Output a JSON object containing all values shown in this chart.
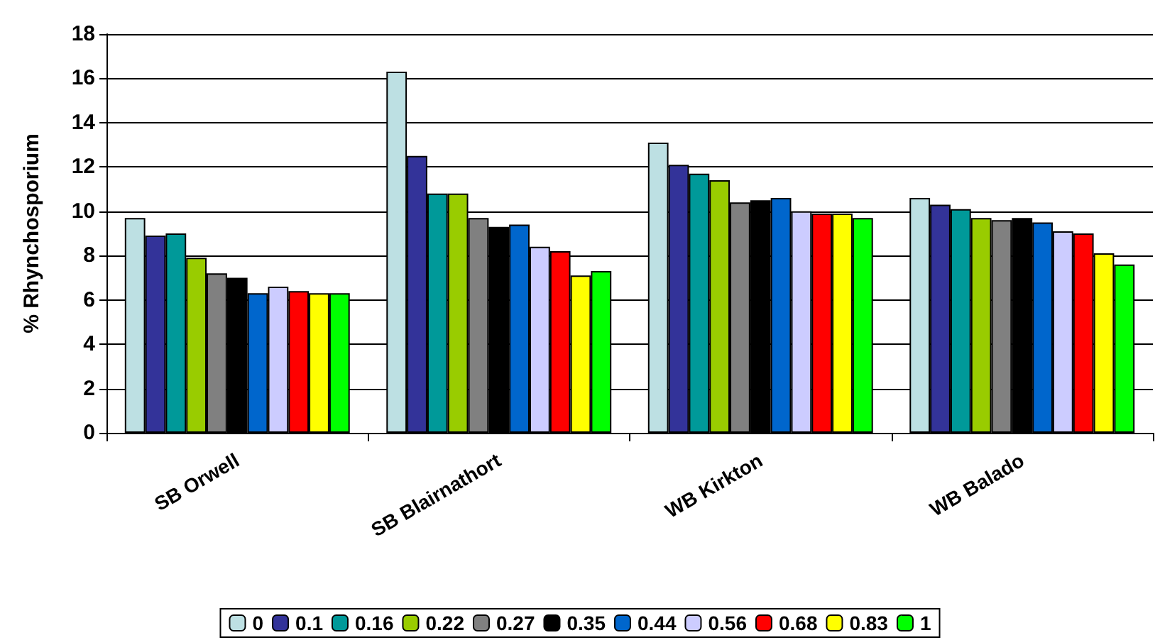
{
  "chart_data": {
    "type": "bar",
    "ylabel": "% Rhynchosporium",
    "categories": [
      "SB Orwell",
      "SB Blairnathort",
      "WB Kirkton",
      "WB Balado"
    ],
    "series": [
      {
        "name": "0",
        "color": "#bde0e3",
        "values": [
          9.7,
          16.3,
          13.1,
          10.6
        ]
      },
      {
        "name": "0.1",
        "color": "#333399",
        "values": [
          8.9,
          12.5,
          12.1,
          10.3
        ]
      },
      {
        "name": "0.16",
        "color": "#009999",
        "values": [
          9.0,
          10.8,
          11.7,
          10.1
        ]
      },
      {
        "name": "0.22",
        "color": "#99cc00",
        "values": [
          7.9,
          10.8,
          11.4,
          9.7
        ]
      },
      {
        "name": "0.27",
        "color": "#808080",
        "values": [
          7.2,
          9.7,
          10.4,
          9.6
        ]
      },
      {
        "name": "0.35",
        "color": "#000000",
        "values": [
          7.0,
          9.3,
          10.5,
          9.7
        ]
      },
      {
        "name": "0.44",
        "color": "#0066cc",
        "values": [
          6.3,
          9.4,
          10.6,
          9.5
        ]
      },
      {
        "name": "0.56",
        "color": "#ccccff",
        "values": [
          6.6,
          8.4,
          10.0,
          9.1
        ]
      },
      {
        "name": "0.68",
        "color": "#ff0000",
        "values": [
          6.4,
          8.2,
          9.9,
          9.0
        ]
      },
      {
        "name": "0.83",
        "color": "#ffff00",
        "values": [
          6.3,
          7.1,
          9.9,
          8.1
        ]
      },
      {
        "name": "1",
        "color": "#00ff00",
        "values": [
          6.3,
          7.3,
          9.7,
          7.6
        ]
      }
    ],
    "ylim": [
      0,
      18
    ],
    "yticks": [
      0,
      2,
      4,
      6,
      8,
      10,
      12,
      14,
      16,
      18
    ],
    "grid": "y",
    "legend": "bottom"
  }
}
